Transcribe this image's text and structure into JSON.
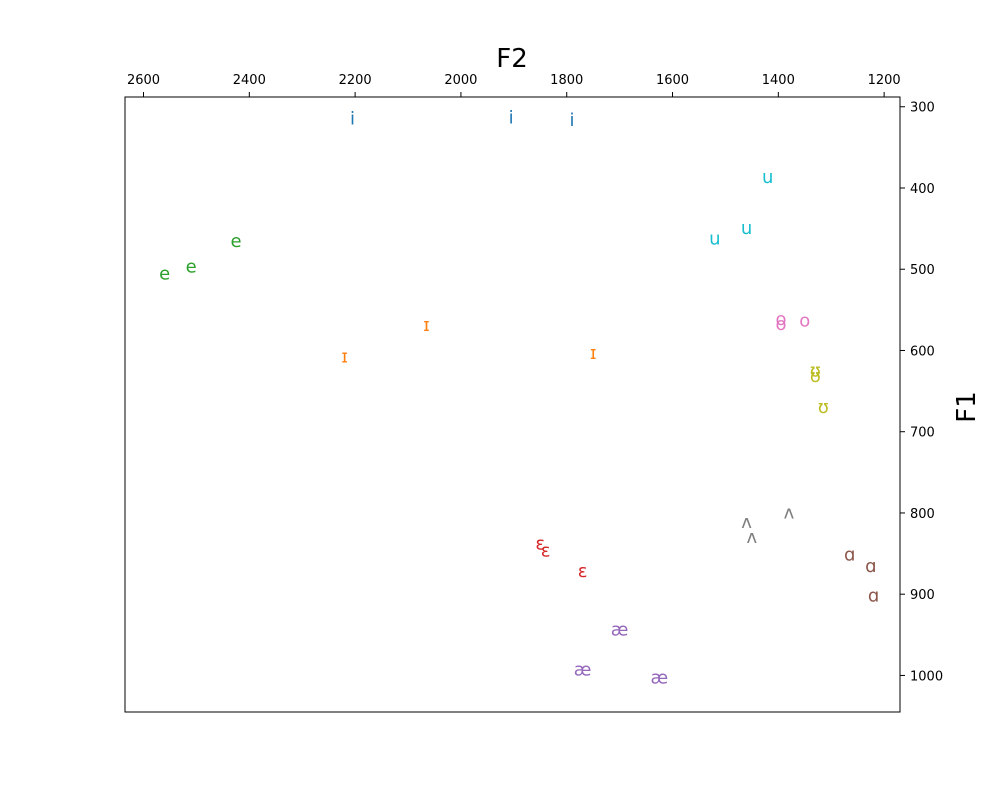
{
  "chart_data": {
    "type": "scatter",
    "xlabel": "F2",
    "ylabel": "F1",
    "x_axis_position": "top",
    "y_axis_position": "right",
    "x_inverted": true,
    "y_inverted": true,
    "xlim": [
      2635,
      1170
    ],
    "ylim": [
      1045,
      288
    ],
    "x_ticks": [
      2600,
      2400,
      2200,
      2000,
      1800,
      1600,
      1400,
      1200
    ],
    "y_ticks": [
      300,
      400,
      500,
      600,
      700,
      800,
      900,
      1000
    ],
    "grid": false,
    "series": [
      {
        "name": "i",
        "color": "#1f77b4",
        "points": [
          [
            2205,
            315
          ],
          [
            1905,
            314
          ],
          [
            1790,
            317
          ]
        ]
      },
      {
        "name": "u",
        "color": "#17becf",
        "points": [
          [
            1420,
            387
          ],
          [
            1460,
            450
          ],
          [
            1520,
            463
          ]
        ]
      },
      {
        "name": "e",
        "color": "#2ca02c",
        "points": [
          [
            2425,
            466
          ],
          [
            2510,
            497
          ],
          [
            2560,
            506
          ]
        ]
      },
      {
        "name": "o",
        "color": "#e377c2",
        "points": [
          [
            1395,
            562
          ],
          [
            1395,
            568
          ],
          [
            1350,
            564
          ]
        ]
      },
      {
        "name": "ɪ",
        "color": "#ff7f0e",
        "points": [
          [
            2065,
            569
          ],
          [
            2220,
            608
          ],
          [
            1750,
            604
          ]
        ]
      },
      {
        "name": "ʊ",
        "color": "#bcbd22",
        "points": [
          [
            1330,
            625
          ],
          [
            1330,
            632
          ],
          [
            1315,
            670
          ]
        ]
      },
      {
        "name": "ʌ",
        "color": "#7f7f7f",
        "points": [
          [
            1380,
            800
          ],
          [
            1460,
            812
          ],
          [
            1450,
            830
          ]
        ]
      },
      {
        "name": "ɛ",
        "color": "#d62728",
        "points": [
          [
            1850,
            838
          ],
          [
            1840,
            847
          ],
          [
            1770,
            872
          ]
        ]
      },
      {
        "name": "ɑ",
        "color": "#8c564b",
        "points": [
          [
            1265,
            852
          ],
          [
            1225,
            866
          ],
          [
            1220,
            902
          ]
        ]
      },
      {
        "name": "æ",
        "color": "#9467bd",
        "points": [
          [
            1700,
            944
          ],
          [
            1770,
            993
          ],
          [
            1625,
            1003
          ]
        ]
      }
    ]
  }
}
